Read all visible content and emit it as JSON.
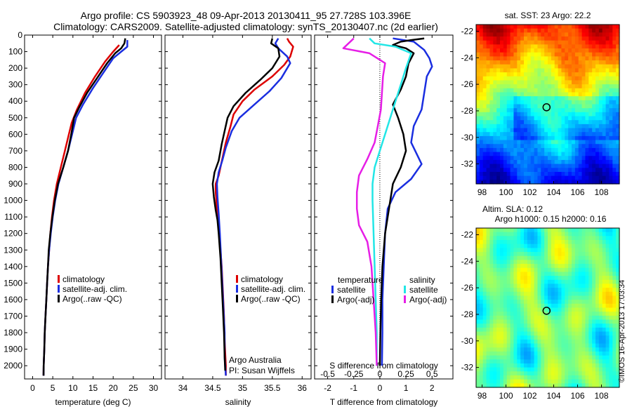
{
  "header": {
    "title_line1": "Argo profile: CS 5903923_48 09-Apr-2013 20130411_95 27.728S 103.396E",
    "title_line2": "Climatology: CARS2009. Satellite-adjusted climatology: synTS_20130407.nc (2d earlier)"
  },
  "credit": {
    "line1": "Argo Australia",
    "line2": "PI: Susan Wijffels"
  },
  "stamp": "©IMOS 16-Apr-2013 17:03:34",
  "colors": {
    "climatology": "#dd0000",
    "satellite": "#1a2ee0",
    "argo": "#000000",
    "salinity_satellite": "#22e6e6",
    "salinity_argo": "#e61ee6"
  },
  "chart_data": [
    {
      "type": "line",
      "xlabel": "temperature (deg C)",
      "ylabel": "",
      "xlim": [
        -2,
        32
      ],
      "ylim": [
        2080,
        0
      ],
      "xticks": [
        0,
        5,
        10,
        15,
        20,
        25,
        30
      ],
      "yticks": [
        0,
        100,
        200,
        300,
        400,
        500,
        600,
        700,
        800,
        900,
        1000,
        1100,
        1200,
        1300,
        1400,
        1500,
        1600,
        1700,
        1800,
        1900,
        2000
      ],
      "legend": [
        "climatology",
        "satellite-adj. clim.",
        "Argo(..raw -QC)"
      ],
      "legend_position": "bottom-center",
      "series": [
        {
          "name": "climatology",
          "color": "#dd0000",
          "points": [
            [
              21.5,
              60
            ],
            [
              20,
              100
            ],
            [
              18,
              160
            ],
            [
              15.5,
              250
            ],
            [
              13,
              350
            ],
            [
              11,
              450
            ],
            [
              9.7,
              530
            ],
            [
              9,
              600
            ],
            [
              8,
              700
            ],
            [
              7,
              800
            ],
            [
              6,
              900
            ],
            [
              5.3,
              1000
            ],
            [
              4.8,
              1100
            ],
            [
              4.4,
              1200
            ],
            [
              4.1,
              1300
            ],
            [
              3.8,
              1400
            ],
            [
              3.6,
              1500
            ],
            [
              3.4,
              1600
            ],
            [
              3.2,
              1700
            ],
            [
              3,
              1800
            ],
            [
              2.9,
              1900
            ],
            [
              2.75,
              2000
            ],
            [
              2.7,
              2060
            ]
          ]
        },
        {
          "name": "satellite-adj. clim.",
          "color": "#1a2ee0",
          "points": [
            [
              23.5,
              30
            ],
            [
              23.5,
              70
            ],
            [
              22,
              100
            ],
            [
              20,
              140
            ],
            [
              17.5,
              230
            ],
            [
              15,
              320
            ],
            [
              12.5,
              420
            ],
            [
              10.8,
              500
            ],
            [
              9.8,
              600
            ],
            [
              8.8,
              700
            ],
            [
              7.6,
              800
            ],
            [
              6.4,
              900
            ],
            [
              5.6,
              1000
            ],
            [
              5,
              1100
            ],
            [
              4.5,
              1200
            ],
            [
              4.1,
              1300
            ],
            [
              3.8,
              1400
            ],
            [
              3.6,
              1500
            ],
            [
              3.4,
              1600
            ],
            [
              3.2,
              1700
            ],
            [
              3,
              1800
            ],
            [
              2.9,
              1900
            ],
            [
              2.75,
              2000
            ],
            [
              2.7,
              2060
            ]
          ]
        },
        {
          "name": "Argo(..raw -QC)",
          "color": "#000000",
          "points": [
            [
              23,
              20
            ],
            [
              22.8,
              50
            ],
            [
              22,
              80
            ],
            [
              20.5,
              110
            ],
            [
              18.5,
              170
            ],
            [
              16,
              260
            ],
            [
              13.5,
              350
            ],
            [
              11.5,
              440
            ],
            [
              10.3,
              500
            ],
            [
              9.6,
              600
            ],
            [
              8.8,
              700
            ],
            [
              7.6,
              800
            ],
            [
              6.3,
              900
            ],
            [
              5.5,
              1000
            ],
            [
              4.9,
              1100
            ],
            [
              4.4,
              1200
            ],
            [
              4,
              1300
            ],
            [
              3.8,
              1400
            ],
            [
              3.6,
              1500
            ],
            [
              3.4,
              1600
            ],
            [
              3.2,
              1700
            ],
            [
              3,
              1800
            ],
            [
              2.9,
              1900
            ],
            [
              2.75,
              2000
            ],
            [
              2.7,
              2060
            ]
          ]
        }
      ]
    },
    {
      "type": "line",
      "xlabel": "salinity",
      "ylabel": "",
      "xlim": [
        33.7,
        36.15
      ],
      "ylim": [
        2080,
        0
      ],
      "xticks": [
        34,
        34.5,
        35,
        35.5,
        36
      ],
      "legend": [
        "climatology",
        "satellite-adj. clim.",
        "Argo(..raw -QC)"
      ],
      "legend_position": "bottom-center",
      "series": [
        {
          "name": "climatology",
          "color": "#dd0000",
          "points": [
            [
              35.75,
              20
            ],
            [
              35.78,
              40
            ],
            [
              35.85,
              70
            ],
            [
              35.8,
              130
            ],
            [
              35.7,
              180
            ],
            [
              35.5,
              250
            ],
            [
              35.2,
              330
            ],
            [
              35,
              400
            ],
            [
              34.85,
              480
            ],
            [
              34.8,
              550
            ],
            [
              34.72,
              650
            ],
            [
              34.66,
              750
            ],
            [
              34.6,
              850
            ],
            [
              34.55,
              900
            ],
            [
              34.55,
              950
            ],
            [
              34.57,
              1050
            ],
            [
              34.6,
              1150
            ],
            [
              34.62,
              1250
            ],
            [
              34.65,
              1400
            ],
            [
              34.67,
              1550
            ],
            [
              34.69,
              1700
            ],
            [
              34.7,
              1850
            ],
            [
              34.72,
              2000
            ],
            [
              34.72,
              2060
            ]
          ]
        },
        {
          "name": "satellite-adj. clim.",
          "color": "#1a2ee0",
          "points": [
            [
              35.6,
              20
            ],
            [
              35.55,
              50
            ],
            [
              35.6,
              80
            ],
            [
              35.75,
              130
            ],
            [
              35.8,
              170
            ],
            [
              35.65,
              260
            ],
            [
              35.45,
              340
            ],
            [
              35.2,
              420
            ],
            [
              34.95,
              500
            ],
            [
              34.82,
              580
            ],
            [
              34.72,
              680
            ],
            [
              34.66,
              760
            ],
            [
              34.6,
              830
            ],
            [
              34.57,
              900
            ],
            [
              34.58,
              980
            ],
            [
              34.6,
              1080
            ],
            [
              34.62,
              1200
            ],
            [
              34.64,
              1350
            ],
            [
              34.66,
              1500
            ],
            [
              34.68,
              1650
            ],
            [
              34.7,
              1800
            ],
            [
              34.7,
              1950
            ],
            [
              34.72,
              2060
            ]
          ]
        },
        {
          "name": "Argo(..raw -QC)",
          "color": "#000000",
          "points": [
            [
              35.5,
              20
            ],
            [
              35.48,
              50
            ],
            [
              35.6,
              80
            ],
            [
              35.62,
              130
            ],
            [
              35.5,
              200
            ],
            [
              35.3,
              270
            ],
            [
              35.05,
              350
            ],
            [
              34.85,
              430
            ],
            [
              34.75,
              500
            ],
            [
              34.7,
              580
            ],
            [
              34.65,
              660
            ],
            [
              34.6,
              760
            ],
            [
              34.53,
              830
            ],
            [
              34.5,
              900
            ],
            [
              34.52,
              980
            ],
            [
              34.55,
              1060
            ],
            [
              34.58,
              1120
            ],
            [
              34.6,
              1200
            ],
            [
              34.63,
              1350
            ],
            [
              34.65,
              1500
            ],
            [
              34.67,
              1650
            ],
            [
              34.69,
              1800
            ],
            [
              34.7,
              1950
            ],
            [
              34.71,
              2030
            ]
          ]
        }
      ]
    },
    {
      "type": "line",
      "xlabel": "T difference from climatology",
      "x2label": "S difference from climatology",
      "ylabel": "",
      "xlim": [
        -2.5,
        2.8
      ],
      "ylim": [
        2080,
        0
      ],
      "xticks": [
        -2,
        -1,
        0,
        1,
        2
      ],
      "x2ticks": [
        -0.5,
        -0.25,
        0,
        0.25,
        0.5
      ],
      "x2scale_T_per_S": 4,
      "legend_groups": [
        {
          "title": "temperature",
          "items": [
            "satellite",
            "Argo(-adj)"
          ]
        },
        {
          "title": "salinity",
          "items": [
            "satellite",
            "Argo(-adj)"
          ]
        }
      ],
      "legend_position": "bottom-center",
      "series": [
        {
          "name": "satellite",
          "quantity": "temperature",
          "color": "#1a2ee0",
          "points": [
            [
              0.5,
              20
            ],
            [
              1.3,
              40
            ],
            [
              1.7,
              90
            ],
            [
              1.9,
              140
            ],
            [
              2,
              190
            ],
            [
              1.8,
              250
            ],
            [
              1.7,
              350
            ],
            [
              1.6,
              450
            ],
            [
              1.3,
              550
            ],
            [
              1.2,
              650
            ],
            [
              1.6,
              780
            ],
            [
              1.2,
              870
            ],
            [
              0.6,
              950
            ],
            [
              0.3,
              1050
            ],
            [
              0.2,
              1200
            ],
            [
              0.15,
              1400
            ],
            [
              0.1,
              1600
            ],
            [
              0.1,
              1800
            ],
            [
              0.08,
              2000
            ]
          ]
        },
        {
          "name": "Argo(-adj)",
          "quantity": "temperature",
          "color": "#000000",
          "points": [
            [
              1.7,
              20
            ],
            [
              1.2,
              30
            ],
            [
              0.8,
              40
            ],
            [
              0.5,
              60
            ],
            [
              1,
              80
            ],
            [
              1.3,
              110
            ],
            [
              1.1,
              170
            ],
            [
              1,
              250
            ],
            [
              0.8,
              330
            ],
            [
              0.5,
              420
            ],
            [
              0.7,
              500
            ],
            [
              0.9,
              600
            ],
            [
              1,
              700
            ],
            [
              0.8,
              800
            ],
            [
              0.5,
              900
            ],
            [
              0.4,
              1000
            ],
            [
              0.3,
              1100
            ],
            [
              0.2,
              1200
            ],
            [
              0.1,
              1400
            ],
            [
              0.05,
              1600
            ],
            [
              0.02,
              1800
            ],
            [
              0,
              2000
            ]
          ]
        },
        {
          "name": "satellite",
          "quantity": "salinity",
          "color": "#22e6e6",
          "points": [
            [
              -0.1,
              20
            ],
            [
              -0.05,
              50
            ],
            [
              0.15,
              70
            ],
            [
              0.3,
              110
            ],
            [
              0.25,
              200
            ],
            [
              0.2,
              300
            ],
            [
              0.15,
              400
            ],
            [
              0.1,
              500
            ],
            [
              0.05,
              600
            ],
            [
              0,
              700
            ],
            [
              -0.05,
              800
            ],
            [
              -0.07,
              900
            ],
            [
              -0.07,
              1000
            ],
            [
              -0.06,
              1200
            ],
            [
              -0.05,
              1400
            ],
            [
              -0.04,
              1600
            ],
            [
              -0.03,
              1800
            ],
            [
              -0.03,
              2000
            ]
          ]
        },
        {
          "name": "Argo(-adj)",
          "quantity": "salinity",
          "color": "#e61ee6",
          "points": [
            [
              -0.25,
              20
            ],
            [
              -0.3,
              50
            ],
            [
              -0.35,
              80
            ],
            [
              -0.1,
              110
            ],
            [
              0.05,
              170
            ],
            [
              0.03,
              250
            ],
            [
              0.02,
              350
            ],
            [
              0.01,
              450
            ],
            [
              -0.02,
              550
            ],
            [
              -0.05,
              650
            ],
            [
              -0.12,
              750
            ],
            [
              -0.2,
              850
            ],
            [
              -0.22,
              950
            ],
            [
              -0.22,
              1050
            ],
            [
              -0.2,
              1150
            ],
            [
              -0.12,
              1250
            ],
            [
              -0.08,
              1400
            ],
            [
              -0.06,
              1600
            ],
            [
              -0.04,
              1800
            ],
            [
              -0.03,
              2000
            ]
          ]
        }
      ]
    },
    {
      "type": "heatmap",
      "title": "sat. SST: 23 Argo: 22.2",
      "xlim": [
        97.5,
        109.5
      ],
      "ylim": [
        -33.5,
        -21.5
      ],
      "xticks": [
        98,
        100,
        102,
        104,
        106,
        108
      ],
      "yticks": [
        -22,
        -24,
        -26,
        -28,
        -30,
        -32
      ],
      "argo_position": [
        103.4,
        -27.73
      ],
      "colorscale": "jet"
    },
    {
      "type": "heatmap",
      "title_line1": "Altim. SLA: 0.12",
      "title_line2": "Argo h1000: 0.15 h2000: 0.16",
      "xlim": [
        97.5,
        109.5
      ],
      "ylim": [
        -33.5,
        -21.5
      ],
      "xticks": [
        98,
        100,
        102,
        104,
        106,
        108
      ],
      "yticks": [
        -22,
        -24,
        -26,
        -28,
        -30,
        -32
      ],
      "argo_position": [
        103.4,
        -27.73
      ],
      "colorscale": "jet"
    }
  ]
}
